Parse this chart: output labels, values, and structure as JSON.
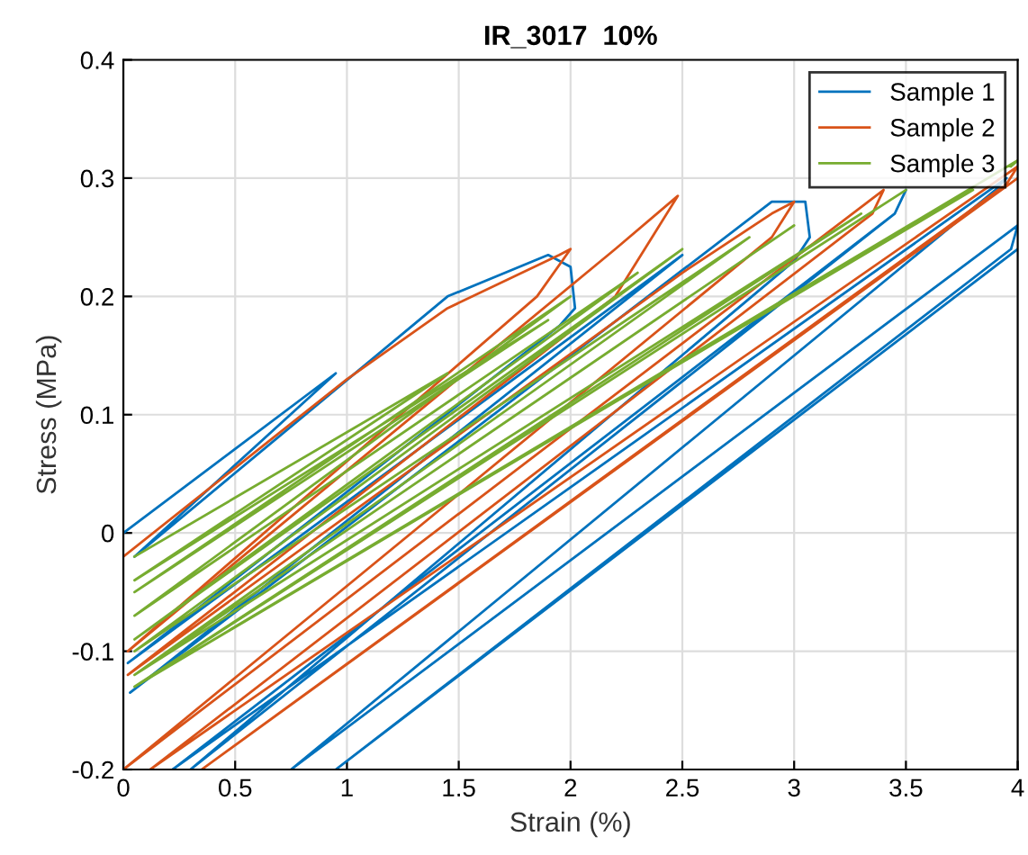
{
  "chart_data": {
    "type": "line",
    "title": "IR_3017  10%",
    "xlabel": "Strain (%)",
    "ylabel": "Stress (MPa)",
    "xlim": [
      0,
      4
    ],
    "ylim": [
      -0.2,
      0.4
    ],
    "xticks": [
      0,
      0.5,
      1,
      1.5,
      2,
      2.5,
      3,
      3.5,
      4
    ],
    "yticks": [
      -0.2,
      -0.1,
      0,
      0.1,
      0.2,
      0.3,
      0.4
    ],
    "grid": true,
    "legend": "top right",
    "marker": "none",
    "line_style": "solid",
    "series": [
      {
        "name": "Sample 1",
        "color": "#0072bd",
        "x": [
          0,
          0.95,
          0.05,
          1.45,
          1.9,
          2.0,
          2.02,
          1.95,
          0.02,
          2.5,
          0.03,
          2.9,
          3.05,
          3.07,
          3.0,
          0.3,
          3.45,
          3.5,
          3.45,
          0.22,
          3.95,
          3.9,
          0.75,
          4.0,
          3.97,
          0.95,
          4.0
        ],
        "values": [
          0,
          0.135,
          -0.02,
          0.2,
          0.235,
          0.225,
          0.19,
          0.175,
          -0.11,
          0.235,
          -0.135,
          0.28,
          0.28,
          0.25,
          0.23,
          -0.2,
          0.27,
          0.29,
          0.27,
          -0.2,
          0.3,
          0.29,
          -0.2,
          0.26,
          0.24,
          -0.2,
          0.24
        ]
      },
      {
        "name": "Sample 2",
        "color": "#d95319",
        "x": [
          0,
          1.0,
          1.45,
          1.95,
          2.0,
          1.85,
          0.02,
          2.2,
          2.48,
          2.2,
          0.02,
          2.5,
          2.9,
          3.0,
          2.9,
          0,
          3.4,
          3.35,
          0.12,
          4.0,
          3.95,
          0.35,
          4.0
        ],
        "values": [
          -0.02,
          0.13,
          0.19,
          0.235,
          0.24,
          0.2,
          -0.1,
          0.24,
          0.285,
          0.2,
          -0.12,
          0.22,
          0.27,
          0.28,
          0.25,
          -0.2,
          0.29,
          0.27,
          -0.2,
          0.31,
          0.295,
          -0.2,
          0.3
        ]
      },
      {
        "name": "Sample 3",
        "color": "#77ac30",
        "x": [
          0.05,
          1.45,
          0.05,
          1.9,
          0.05,
          2.0,
          0.05,
          2.3,
          0.05,
          2.5,
          0.05,
          2.8,
          0.05,
          3.0,
          0.05,
          3.3,
          0.05,
          3.5,
          0.05,
          3.8,
          0.05,
          4.0,
          3.97
        ],
        "values": [
          -0.02,
          0.135,
          -0.04,
          0.18,
          -0.05,
          0.2,
          -0.07,
          0.22,
          -0.09,
          0.24,
          -0.1,
          0.25,
          -0.12,
          0.26,
          -0.12,
          0.27,
          -0.13,
          0.29,
          -0.13,
          0.29,
          -0.13,
          0.315,
          0.31
        ]
      }
    ]
  }
}
